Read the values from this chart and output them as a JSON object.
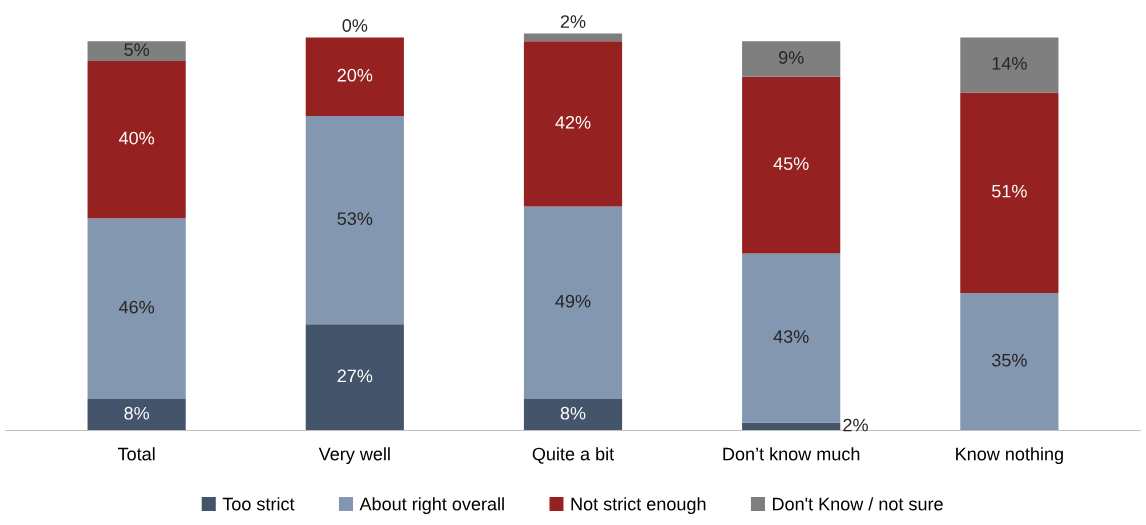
{
  "chart_data": {
    "type": "bar",
    "stacked": true,
    "legend": "bottom",
    "grid": false,
    "categories": [
      "Total",
      "Very well",
      "Quite a bit",
      "Don’t know much",
      "Know nothing"
    ],
    "series": [
      {
        "name": "Too strict",
        "color": "#44546a",
        "values": [
          8,
          27,
          8,
          2,
          null
        ],
        "value_labels": [
          "8%",
          "27%",
          "8%",
          "2%",
          null
        ]
      },
      {
        "name": "About right overall",
        "color": "#8497b0",
        "values": [
          46,
          53,
          49,
          43,
          35
        ],
        "value_labels": [
          "46%",
          "53%",
          "49%",
          "43%",
          "35%"
        ]
      },
      {
        "name": "Not strict enough",
        "color": "#952220",
        "values": [
          40,
          20,
          42,
          45,
          51
        ],
        "value_labels": [
          "40%",
          "20%",
          "42%",
          "45%",
          "51%"
        ]
      },
      {
        "name": "Don't Know / not sure",
        "color": "#7f7f7f",
        "values": [
          5,
          0,
          2,
          9,
          14
        ],
        "value_labels": [
          "5%",
          "0%",
          "2%",
          "9%",
          "14%"
        ]
      }
    ]
  }
}
